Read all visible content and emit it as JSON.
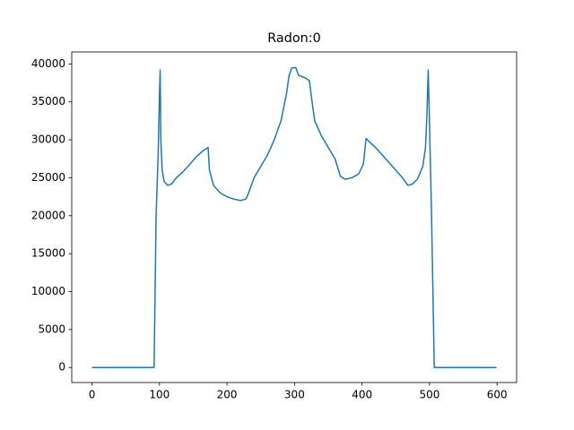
{
  "chart_data": {
    "type": "line",
    "title": "Radon:0",
    "x": [
      0,
      92,
      95,
      98,
      100,
      101,
      102,
      104,
      107,
      112,
      118,
      125,
      135,
      145,
      155,
      165,
      172,
      174,
      180,
      190,
      200,
      210,
      220,
      228,
      232,
      240,
      250,
      260,
      270,
      280,
      288,
      292,
      296,
      302,
      306,
      315,
      322,
      326,
      330,
      340,
      350,
      360,
      368,
      375,
      385,
      395,
      402,
      406,
      410,
      420,
      430,
      440,
      450,
      460,
      468,
      475,
      482,
      490,
      494,
      496,
      498,
      500,
      503,
      507,
      599
    ],
    "values": [
      0,
      0,
      20000,
      28000,
      36000,
      39200,
      30000,
      26000,
      24500,
      24000,
      24200,
      25000,
      25800,
      26800,
      27800,
      28600,
      29000,
      26000,
      24000,
      23000,
      22500,
      22200,
      22000,
      22200,
      23000,
      25000,
      26500,
      28000,
      30000,
      32500,
      36000,
      38500,
      39500,
      39500,
      38500,
      38200,
      37800,
      35000,
      32500,
      30500,
      29000,
      27500,
      25200,
      24800,
      25000,
      25500,
      26800,
      30200,
      29800,
      29000,
      28000,
      27000,
      26000,
      25000,
      24000,
      24200,
      24800,
      26500,
      29000,
      33000,
      39200,
      32000,
      20000,
      0,
      0
    ],
    "color": "#1f77b4",
    "xlim": [
      -29.95,
      628.95
    ],
    "xticks": [
      0,
      100,
      200,
      300,
      400,
      500,
      600
    ],
    "ylim": [
      -1980,
      41580
    ],
    "yticks": [
      0,
      5000,
      10000,
      15000,
      20000,
      25000,
      30000,
      35000,
      40000
    ],
    "grid": false
  }
}
